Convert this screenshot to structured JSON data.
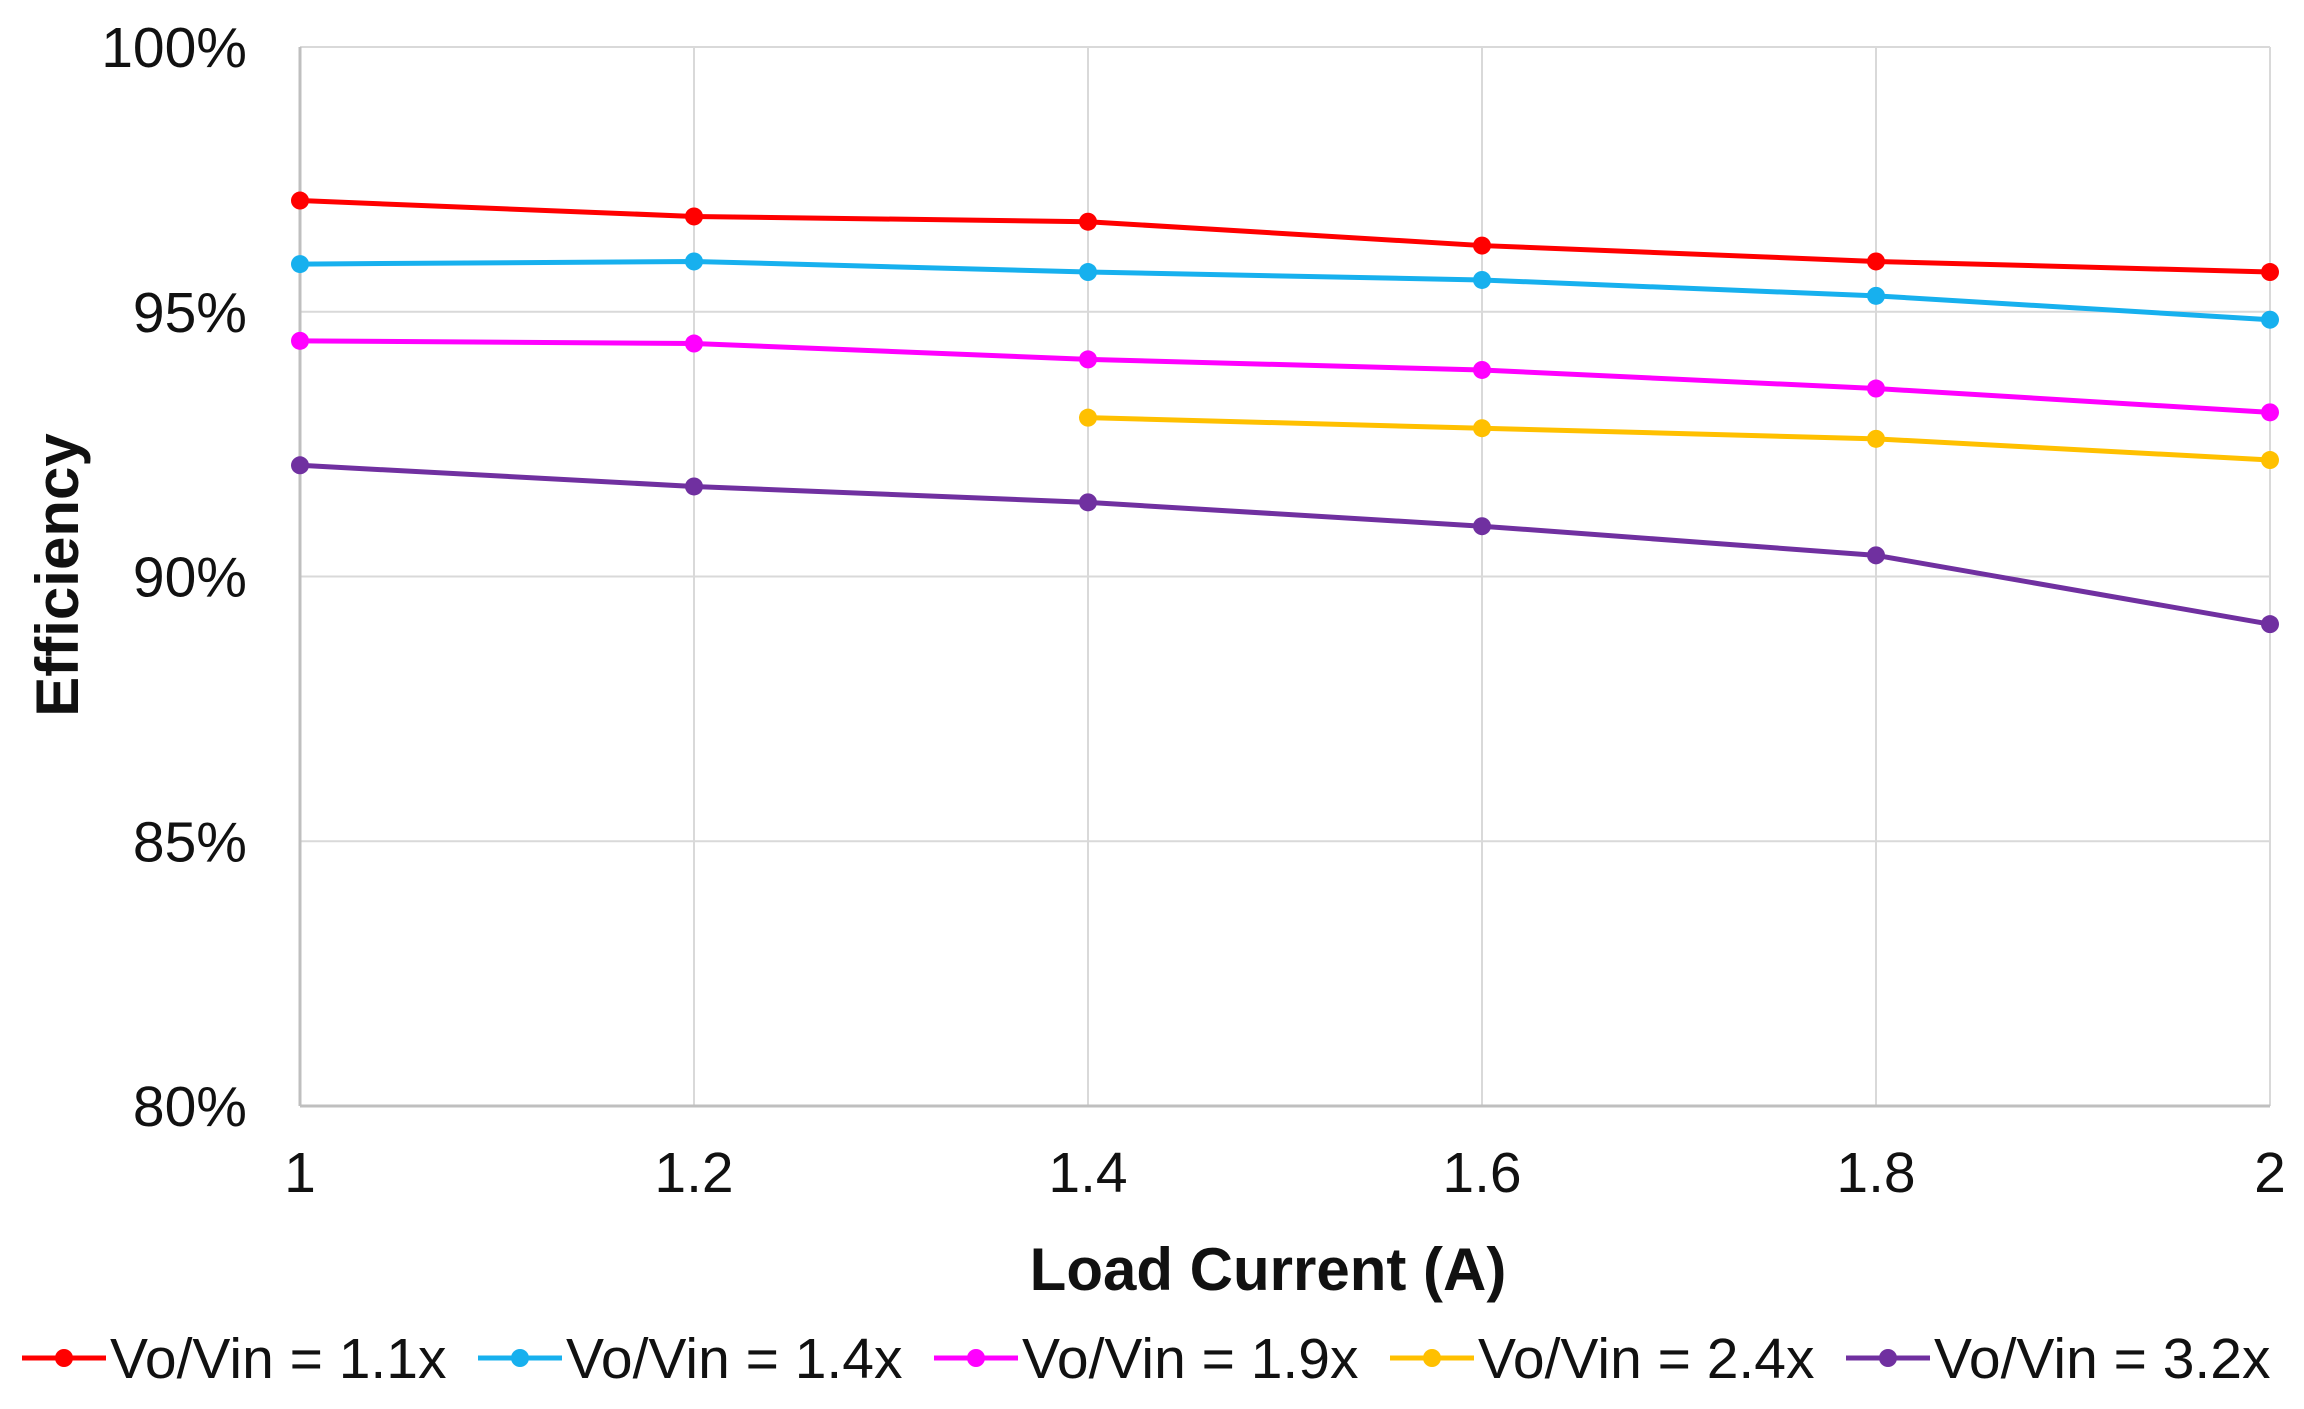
{
  "chart_data": {
    "type": "line",
    "title": "",
    "xlabel": "Load Current (A)",
    "ylabel": "Efficiency",
    "x": [
      1,
      1.2,
      1.4,
      1.6,
      1.8,
      2
    ],
    "xlim": [
      1,
      2
    ],
    "ylim": [
      80,
      100
    ],
    "x_ticks": [
      1,
      1.2,
      1.4,
      1.6,
      1.8,
      2
    ],
    "x_tick_labels": [
      "1",
      "1.2",
      "1.4",
      "1.6",
      "1.8",
      "2"
    ],
    "y_ticks": [
      80,
      85,
      90,
      95,
      100
    ],
    "y_tick_labels": [
      "80%",
      "85%",
      "90%",
      "95%",
      "100%"
    ],
    "grid": true,
    "legend_position": "bottom",
    "series": [
      {
        "name": "Vo/Vin = 1.1x",
        "color": "#ff0000",
        "values": [
          97.1,
          96.8,
          96.7,
          96.25,
          95.95,
          95.75
        ]
      },
      {
        "name": "Vo/Vin = 1.4x",
        "color": "#17b0ee",
        "values": [
          95.9,
          95.95,
          95.75,
          95.6,
          95.3,
          94.85
        ]
      },
      {
        "name": "Vo/Vin = 1.9x",
        "color": "#ff00ff",
        "values": [
          94.45,
          94.4,
          94.1,
          93.9,
          93.55,
          93.1
        ]
      },
      {
        "name": "Vo/Vin = 2.4x",
        "color": "#ffc000",
        "values": [
          null,
          null,
          93.0,
          92.8,
          92.6,
          92.2
        ]
      },
      {
        "name": "Vo/Vin = 3.2x",
        "color": "#7030a0",
        "values": [
          92.1,
          91.7,
          91.4,
          90.95,
          90.4,
          89.1
        ]
      }
    ]
  }
}
